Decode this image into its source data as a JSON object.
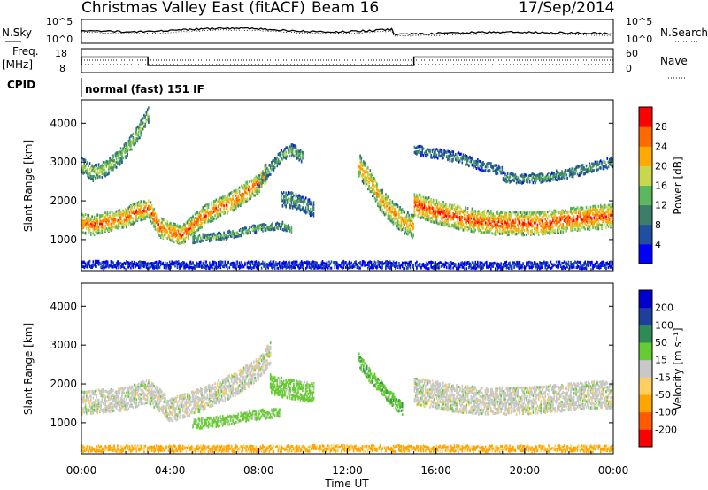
{
  "header": {
    "title": "Christmas Valley East (fitACF)",
    "beam": "Beam 16",
    "date": "17/Sep/2014"
  },
  "noise_panel": {
    "left_label": "N.Sky",
    "right_label": "N.Search",
    "left_ticks": [
      "10^5",
      "10^0"
    ],
    "right_ticks": [
      "10^5",
      "10^0"
    ]
  },
  "freq_panel": {
    "left_label_1": "Freq.",
    "left_label_2": "[MHz]",
    "right_label": "Nave",
    "left_ticks": [
      "18",
      "8"
    ],
    "right_ticks": [
      "60",
      "0"
    ]
  },
  "cpid": {
    "label": "CPID",
    "mode_text": "normal (fast) 151 IF"
  },
  "colors": {
    "power": [
      "#0000ff",
      "#1f4fa0",
      "#3b7f6a",
      "#5cb85c",
      "#c8d84c",
      "#ffaa00",
      "#ff6a00",
      "#ff0000"
    ],
    "velocity": [
      "#ff0000",
      "#ff5a00",
      "#ffa500",
      "#ffd060",
      "#c8c8c8",
      "#66cc33",
      "#2e8b57",
      "#1f3f9f",
      "#0000cc"
    ]
  },
  "chart_data": [
    {
      "type": "heatmap",
      "name": "power",
      "ylabel": "Slant Range [km]",
      "yticks": [
        1000,
        2000,
        3000,
        4000
      ],
      "ylim": [
        200,
        4600
      ],
      "xlim": [
        0,
        24
      ],
      "colorbar_label": "Power [dB]",
      "colorbar_ticks": [
        4,
        8,
        12,
        16,
        20,
        24,
        28
      ],
      "colorbar_range": [
        0,
        32
      ],
      "bands": [
        {
          "t": [
            0.0,
            0.5,
            1.0,
            1.5,
            2.0,
            2.5,
            3.0,
            3.5,
            4.0,
            4.5,
            5.0,
            5.5,
            6.0,
            6.5,
            7.0,
            7.5,
            8.0,
            8.3
          ],
          "r": [
            1400,
            1350,
            1420,
            1500,
            1550,
            1700,
            1800,
            1300,
            1200,
            1100,
            1350,
            1600,
            1750,
            1900,
            2050,
            2250,
            2450,
            2700
          ],
          "width": 500,
          "level": 0.85
        },
        {
          "t": [
            0.0,
            0.5,
            1.0,
            1.5,
            2.0,
            2.5,
            3.0
          ],
          "r": [
            2900,
            2700,
            2800,
            3000,
            3300,
            3700,
            4200
          ],
          "width": 400,
          "level": 0.55
        },
        {
          "t": [
            8.0,
            8.5,
            9.0,
            9.5,
            10.0
          ],
          "r": [
            2500,
            2800,
            3150,
            3300,
            3100
          ],
          "width": 300,
          "level": 0.45
        },
        {
          "t": [
            5.0,
            6.0,
            7.0,
            8.0,
            9.0,
            9.5
          ],
          "r": [
            1000,
            1050,
            1150,
            1300,
            1350,
            1250
          ],
          "width": 200,
          "level": 0.45
        },
        {
          "t": [
            9.0,
            9.5,
            10.0,
            10.5
          ],
          "r": [
            2050,
            2000,
            1900,
            1750
          ],
          "width": 400,
          "level": 0.4
        },
        {
          "t": [
            12.5,
            13.0,
            13.5,
            14.0,
            14.5,
            15.0
          ],
          "r": [
            2900,
            2500,
            2000,
            1700,
            1450,
            1300
          ],
          "width": 600,
          "level": 0.75
        },
        {
          "t": [
            15.0,
            16.0,
            17.0,
            18.0,
            19.0,
            20.0,
            21.0,
            22.0,
            23.0,
            24.0
          ],
          "r": [
            1900,
            1700,
            1550,
            1450,
            1400,
            1400,
            1420,
            1500,
            1550,
            1600
          ],
          "width": 600,
          "level": 0.9
        },
        {
          "t": [
            15.0,
            16.0,
            17.0,
            18.0,
            19.0
          ],
          "r": [
            3300,
            3200,
            3100,
            2900,
            2750
          ],
          "width": 250,
          "level": 0.35
        },
        {
          "t": [
            19.0,
            20.0,
            21.0,
            22.0,
            23.0,
            24.0
          ],
          "r": [
            2600,
            2550,
            2600,
            2700,
            2850,
            3000
          ],
          "width": 250,
          "level": 0.4
        },
        {
          "t": [
            0.0,
            6.0,
            12.0,
            18.0,
            24.0
          ],
          "r": [
            350,
            330,
            340,
            320,
            330
          ],
          "width": 180,
          "level": 0.15
        }
      ]
    },
    {
      "type": "heatmap",
      "name": "velocity",
      "ylabel": "Slant Range [km]",
      "yticks": [
        1000,
        2000,
        3000,
        4000
      ],
      "ylim": [
        200,
        4600
      ],
      "xlim": [
        0,
        24
      ],
      "xlabel": "Time UT",
      "xticks": [
        "00:00",
        "04:00",
        "08:00",
        "12:00",
        "16:00",
        "20:00",
        "00:00"
      ],
      "colorbar_label": "Velocity [m s⁻¹]",
      "colorbar_ticks": [
        -200,
        -100,
        -50,
        -15,
        15,
        50,
        100,
        200
      ],
      "bands": [
        {
          "t": [
            0.0,
            1.0,
            2.0,
            3.0,
            4.0,
            5.0,
            6.0,
            7.0,
            8.0,
            8.5
          ],
          "r": [
            1500,
            1550,
            1600,
            1800,
            1300,
            1500,
            1750,
            2000,
            2400,
            2800
          ],
          "width": 600,
          "v": 0
        },
        {
          "t": [
            15.0,
            16.0,
            17.0,
            18.0,
            19.0,
            20.0,
            21.0,
            22.0,
            23.0,
            24.0
          ],
          "r": [
            1800,
            1700,
            1600,
            1550,
            1550,
            1550,
            1600,
            1650,
            1700,
            1700
          ],
          "width": 700,
          "v": 0
        },
        {
          "t": [
            5.0,
            6.0,
            7.0,
            8.0,
            9.0
          ],
          "r": [
            950,
            1000,
            1100,
            1200,
            1250
          ],
          "width": 250,
          "v": 30
        },
        {
          "t": [
            8.5,
            9.0,
            9.5,
            10.0,
            10.5
          ],
          "r": [
            2000,
            1900,
            1850,
            1800,
            1750
          ],
          "width": 500,
          "v": 30
        },
        {
          "t": [
            12.5,
            13.0,
            13.5,
            14.0,
            14.5
          ],
          "r": [
            2600,
            2200,
            1900,
            1600,
            1300
          ],
          "width": 350,
          "v": 40
        },
        {
          "t": [
            0.0,
            6.0,
            12.0,
            18.0,
            24.0
          ],
          "r": [
            320,
            320,
            330,
            320,
            320
          ],
          "width": 160,
          "v": -60
        }
      ]
    }
  ]
}
